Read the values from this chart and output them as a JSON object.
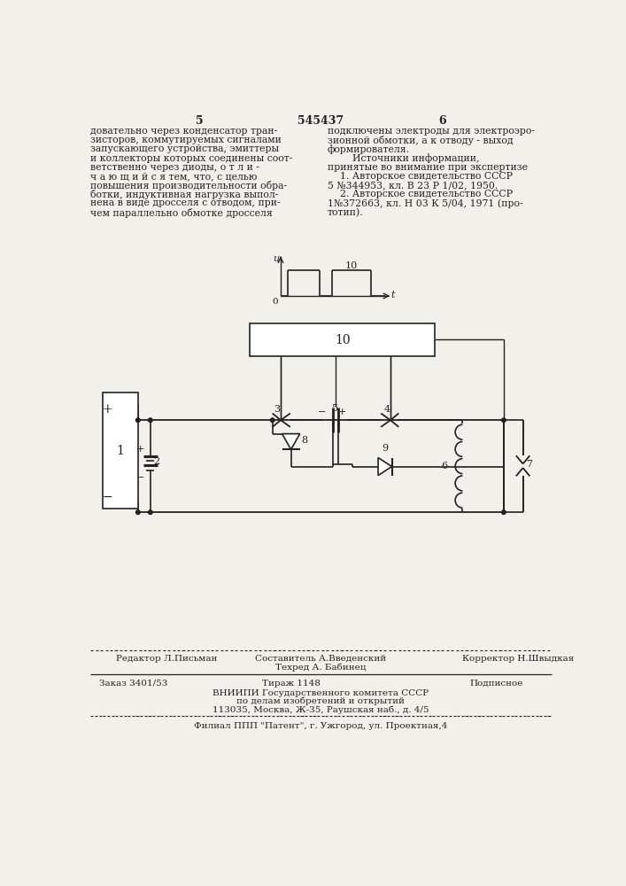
{
  "page_number_left": "5",
  "page_number_center": "545437",
  "page_number_right": "6",
  "text_left_lines": [
    "довательно через конденсатор тран-",
    "зисторов, коммутируемых сигналами",
    "запускающего устройства, эмиттеры",
    "и коллекторы которых соединены соот-",
    "ветственно через диоды, о т л и -",
    "ч а ю щ и й с я тем, что, с целью",
    "повышения производительности обра-",
    "ботки, индуктивная нагрузка выпол-",
    "нена в виде дросселя с отводом, при-",
    "чем параллельно обмотке дросселя"
  ],
  "text_right_lines": [
    "подключены электроды для электроэро-",
    "зионной обмотки, а к отводу - выход",
    "формирователя.",
    "        Источники информации,",
    "принятые во внимание при экспертизе",
    "    1. Авторское свидетельство СССР",
    "5 №344953, кл. В 23 Р 1/02, 1950.",
    "    2. Авторское свидетельство СССР",
    "1№372663, кл. Н 03 К 5/04, 1971 (про-",
    "тотип)."
  ],
  "footer_editor": "Редактор Л.Письман",
  "footer_tech": "Техред А. Бабинец",
  "footer_corrector": "Корректор Н.Швыдкая",
  "footer_order": "Заказ 3401/53",
  "footer_print": "Тираж 1148",
  "footer_sign": "Подписное",
  "footer_org": "ВНИИПИ Государственного комитета СССР",
  "footer_org2": "по делам изобретений и открытий",
  "footer_addr": "113035, Москва, Ж-35, Раушская наб., д. 4/5",
  "footer_branch": "Филиал ППП \"Патент\", г. Ужгород, ул. Проектная,4",
  "sestavitel": "Составитель А.Введенский",
  "bg_color": "#f2f0eb",
  "line_color": "#222222",
  "text_color": "#222222"
}
